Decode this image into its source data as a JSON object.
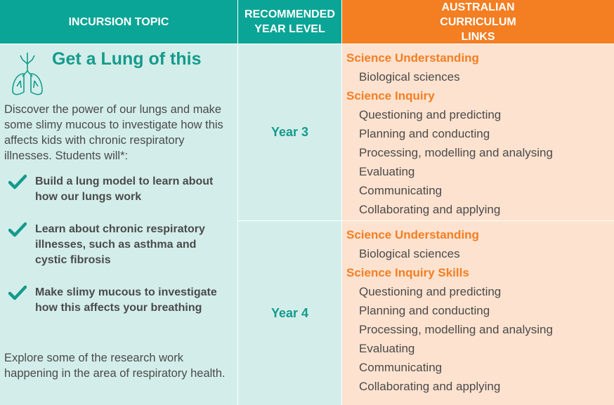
{
  "header": {
    "topic": "INCURSION TOPIC",
    "year_level": "RECOMMENDED YEAR LEVEL",
    "curriculum": "AUSTRALIAN CURRICULUM LINKS"
  },
  "topic": {
    "title": "Get a Lung of this",
    "intro": "Discover the power of our lungs and make some slimy mucous to investigate how this affects kids with chronic respiratory illnesses. Students will*:",
    "outcomes": [
      "Build a lung model to learn about how our lungs work",
      "Learn about chronic respiratory illnesses, such as asthma and cystic fibrosis",
      "Make slimy mucous to investigate how this affects your breathing"
    ],
    "outro": "Explore some of the research work happening in the area of respiratory health."
  },
  "rows": [
    {
      "year": "Year 3",
      "links": [
        {
          "heading": "Science Understanding",
          "items": [
            "Biological sciences"
          ]
        },
        {
          "heading": "Science Inquiry",
          "items": [
            "Questioning and predicting",
            "Planning and conducting",
            "Processing, modelling and analysing",
            "Evaluating",
            "Communicating",
            "Collaborating and applying"
          ]
        }
      ]
    },
    {
      "year": "Year 4",
      "links": [
        {
          "heading": "Science Understanding",
          "items": [
            "Biological sciences"
          ]
        },
        {
          "heading": "Science Inquiry Skills",
          "items": [
            "Questioning and predicting",
            "Planning and conducting",
            "Processing, modelling and analysing",
            "Evaluating",
            "Communicating",
            "Collaborating and applying"
          ]
        }
      ]
    }
  ]
}
